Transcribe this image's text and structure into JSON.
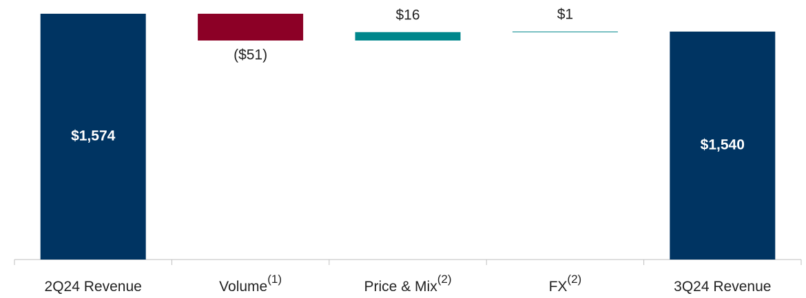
{
  "chart_data": {
    "type": "waterfall",
    "categories": [
      "2Q24 Revenue",
      "Volume",
      "Price & Mix",
      "FX",
      "3Q24 Revenue"
    ],
    "category_notes": [
      null,
      "(1)",
      "(2)",
      "(2)",
      null
    ],
    "measures": [
      "total",
      "relative",
      "relative",
      "relative",
      "total"
    ],
    "values": [
      1574,
      -51,
      16,
      1,
      1540
    ],
    "value_labels": [
      "$1,574",
      "($51)",
      "$16",
      "$1",
      "$1,540"
    ],
    "colors": [
      "#003462",
      "#8c0026",
      "#00878c",
      "#00878c",
      "#003462"
    ],
    "ylim": [
      1106,
      1574
    ]
  }
}
